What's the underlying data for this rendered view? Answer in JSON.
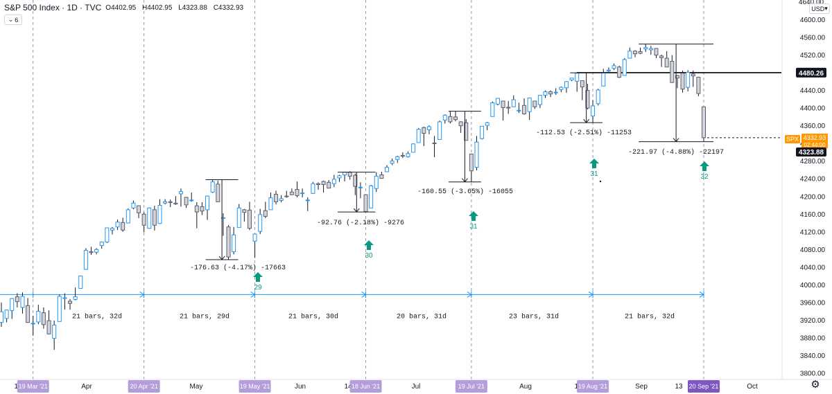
{
  "header": {
    "symbol": "S&P 500 Index · 1D · TVC",
    "open_label": "O",
    "open": "4402.95",
    "high_label": "H",
    "high": "4402.95",
    "low_label": "L",
    "low": "4323.88",
    "close_label": "C",
    "close": "4332.93",
    "indicator_count": "6"
  },
  "price_axis": {
    "currency": "USD",
    "ticks": [
      "4600.00",
      "4560.00",
      "4520.00",
      "4480.00",
      "4440.00",
      "4400.00",
      "4360.00",
      "4320.00",
      "4280.00",
      "4240.00",
      "4200.00",
      "4160.00",
      "4120.00",
      "4080.00",
      "4040.00",
      "4000.00",
      "3960.00",
      "3920.00",
      "3880.00",
      "3840.00",
      "3800.00"
    ],
    "top_cut_label": "4640.00",
    "hline_label": "4480.26",
    "spx_symbol": "SPX",
    "spx_price": "4332.93",
    "spx_countdown": "02:44:00",
    "low_label": "4323.88"
  },
  "time_axis": {
    "labels": [
      "15",
      "Apr",
      "20",
      "May",
      "Jun",
      "14",
      "Jul",
      "Aug",
      "16",
      "Sep",
      "13",
      "Oct"
    ],
    "highlights": [
      "19 Mar '21",
      "20 Apr '21",
      "19 May '21",
      "18 Jun '21",
      "19 Jul '21",
      "19 Aug '21",
      "20 Sep '21"
    ]
  },
  "chart_data": {
    "type": "candlestick",
    "title": "S&P 500 Index · 1D · TVC",
    "ylim": [
      3780,
      4640
    ],
    "x_range": [
      "2021-03-11",
      "2021-10-08"
    ],
    "horizontal_level": 4480.26,
    "candles": [
      {
        "d": "2021-03-11",
        "o": 3915,
        "h": 3960,
        "l": 3905,
        "c": 3939
      },
      {
        "d": "2021-03-12",
        "o": 3924,
        "h": 3944,
        "l": 3915,
        "c": 3943
      },
      {
        "d": "2021-03-15",
        "o": 3942,
        "h": 3970,
        "l": 3923,
        "c": 3969
      },
      {
        "d": "2021-03-16",
        "o": 3973,
        "h": 3981,
        "l": 3949,
        "c": 3962
      },
      {
        "d": "2021-03-17",
        "o": 3949,
        "h": 3983,
        "l": 3935,
        "c": 3974
      },
      {
        "d": "2021-03-18",
        "o": 3953,
        "h": 3970,
        "l": 3914,
        "c": 3915
      },
      {
        "d": "2021-03-19",
        "o": 3913,
        "h": 3930,
        "l": 3885,
        "c": 3913
      },
      {
        "d": "2021-03-22",
        "o": 3916,
        "h": 3955,
        "l": 3911,
        "c": 3940
      },
      {
        "d": "2021-03-23",
        "o": 3937,
        "h": 3949,
        "l": 3901,
        "c": 3910
      },
      {
        "d": "2021-03-24",
        "o": 3919,
        "h": 3942,
        "l": 3888,
        "c": 3889
      },
      {
        "d": "2021-03-25",
        "o": 3879,
        "h": 3919,
        "l": 3853,
        "c": 3909
      },
      {
        "d": "2021-03-26",
        "o": 3917,
        "h": 3978,
        "l": 3917,
        "c": 3974
      },
      {
        "d": "2021-03-29",
        "o": 3969,
        "h": 3981,
        "l": 3944,
        "c": 3971
      },
      {
        "d": "2021-03-30",
        "o": 3963,
        "h": 3968,
        "l": 3944,
        "c": 3958
      },
      {
        "d": "2021-03-31",
        "o": 3967,
        "h": 3994,
        "l": 3965,
        "c": 3973
      },
      {
        "d": "2021-04-01",
        "o": 3992,
        "h": 4021,
        "l": 3992,
        "c": 4020
      },
      {
        "d": "2021-04-05",
        "o": 4035,
        "h": 4083,
        "l": 4035,
        "c": 4078
      },
      {
        "d": "2021-04-06",
        "o": 4075,
        "h": 4086,
        "l": 4068,
        "c": 4073
      },
      {
        "d": "2021-04-07",
        "o": 4074,
        "h": 4083,
        "l": 4069,
        "c": 4080
      },
      {
        "d": "2021-04-08",
        "o": 4089,
        "h": 4098,
        "l": 4082,
        "c": 4097
      },
      {
        "d": "2021-04-09",
        "o": 4097,
        "h": 4129,
        "l": 4095,
        "c": 4129
      },
      {
        "d": "2021-04-12",
        "o": 4124,
        "h": 4131,
        "l": 4114,
        "c": 4128
      },
      {
        "d": "2021-04-13",
        "o": 4131,
        "h": 4148,
        "l": 4124,
        "c": 4142
      },
      {
        "d": "2021-04-14",
        "o": 4141,
        "h": 4152,
        "l": 4120,
        "c": 4124
      },
      {
        "d": "2021-04-15",
        "o": 4140,
        "h": 4173,
        "l": 4140,
        "c": 4170
      },
      {
        "d": "2021-04-16",
        "o": 4174,
        "h": 4191,
        "l": 4171,
        "c": 4185
      },
      {
        "d": "2021-04-19",
        "o": 4179,
        "h": 4180,
        "l": 4151,
        "c": 4163
      },
      {
        "d": "2021-04-20",
        "o": 4160,
        "h": 4164,
        "l": 4119,
        "c": 4135
      },
      {
        "d": "2021-04-21",
        "o": 4128,
        "h": 4175,
        "l": 4127,
        "c": 4174
      },
      {
        "d": "2021-04-22",
        "o": 4170,
        "h": 4179,
        "l": 4123,
        "c": 4135
      },
      {
        "d": "2021-04-23",
        "o": 4139,
        "h": 4194,
        "l": 4138,
        "c": 4180
      },
      {
        "d": "2021-04-26",
        "o": 4185,
        "h": 4194,
        "l": 4182,
        "c": 4188
      },
      {
        "d": "2021-04-27",
        "o": 4188,
        "h": 4193,
        "l": 4176,
        "c": 4187
      },
      {
        "d": "2021-04-28",
        "o": 4185,
        "h": 4201,
        "l": 4181,
        "c": 4183
      },
      {
        "d": "2021-04-29",
        "o": 4206,
        "h": 4218,
        "l": 4177,
        "c": 4211
      },
      {
        "d": "2021-04-30",
        "o": 4198,
        "h": 4199,
        "l": 4174,
        "c": 4181
      },
      {
        "d": "2021-05-03",
        "o": 4192,
        "h": 4209,
        "l": 4188,
        "c": 4192
      },
      {
        "d": "2021-05-04",
        "o": 4179,
        "h": 4187,
        "l": 4128,
        "c": 4165
      },
      {
        "d": "2021-05-05",
        "o": 4177,
        "h": 4187,
        "l": 4158,
        "c": 4167
      },
      {
        "d": "2021-05-06",
        "o": 4170,
        "h": 4202,
        "l": 4147,
        "c": 4201
      },
      {
        "d": "2021-05-07",
        "o": 4210,
        "h": 4238,
        "l": 4208,
        "c": 4233
      },
      {
        "d": "2021-05-10",
        "o": 4228,
        "h": 4236,
        "l": 4188,
        "c": 4188
      },
      {
        "d": "2021-05-11",
        "o": 4151,
        "h": 4162,
        "l": 4111,
        "c": 4152
      },
      {
        "d": "2021-05-12",
        "o": 4131,
        "h": 4135,
        "l": 4057,
        "c": 4063
      },
      {
        "d": "2021-05-13",
        "o": 4075,
        "h": 4131,
        "l": 4069,
        "c": 4113
      },
      {
        "d": "2021-05-14",
        "o": 4130,
        "h": 4183,
        "l": 4130,
        "c": 4174
      },
      {
        "d": "2021-05-17",
        "o": 4170,
        "h": 4172,
        "l": 4143,
        "c": 4164
      },
      {
        "d": "2021-05-18",
        "o": 4169,
        "h": 4188,
        "l": 4124,
        "c": 4128
      },
      {
        "d": "2021-05-19",
        "o": 4099,
        "h": 4116,
        "l": 4061,
        "c": 4115
      },
      {
        "d": "2021-05-20",
        "o": 4121,
        "h": 4172,
        "l": 4115,
        "c": 4159
      },
      {
        "d": "2021-05-21",
        "o": 4168,
        "h": 4188,
        "l": 4151,
        "c": 4155
      },
      {
        "d": "2021-05-24",
        "o": 4170,
        "h": 4209,
        "l": 4170,
        "c": 4197
      },
      {
        "d": "2021-05-25",
        "o": 4205,
        "h": 4213,
        "l": 4182,
        "c": 4188
      },
      {
        "d": "2021-05-26",
        "o": 4191,
        "h": 4203,
        "l": 4187,
        "c": 4195
      },
      {
        "d": "2021-05-27",
        "o": 4201,
        "h": 4213,
        "l": 4197,
        "c": 4200
      },
      {
        "d": "2021-05-28",
        "o": 4210,
        "h": 4218,
        "l": 4203,
        "c": 4204
      },
      {
        "d": "2021-06-01",
        "o": 4216,
        "h": 4234,
        "l": 4198,
        "c": 4202
      },
      {
        "d": "2021-06-02",
        "o": 4207,
        "h": 4218,
        "l": 4198,
        "c": 4208
      },
      {
        "d": "2021-06-03",
        "o": 4191,
        "h": 4198,
        "l": 4167,
        "c": 4192
      },
      {
        "d": "2021-06-04",
        "o": 4207,
        "h": 4233,
        "l": 4206,
        "c": 4229
      },
      {
        "d": "2021-06-07",
        "o": 4229,
        "h": 4232,
        "l": 4215,
        "c": 4227
      },
      {
        "d": "2021-06-08",
        "o": 4234,
        "h": 4236,
        "l": 4209,
        "c": 4227
      },
      {
        "d": "2021-06-09",
        "o": 4232,
        "h": 4237,
        "l": 4218,
        "c": 4219
      },
      {
        "d": "2021-06-10",
        "o": 4229,
        "h": 4249,
        "l": 4221,
        "c": 4239
      },
      {
        "d": "2021-06-11",
        "o": 4242,
        "h": 4249,
        "l": 4233,
        "c": 4247
      },
      {
        "d": "2021-06-14",
        "o": 4249,
        "h": 4255,
        "l": 4234,
        "c": 4255
      },
      {
        "d": "2021-06-15",
        "o": 4255,
        "h": 4257,
        "l": 4238,
        "c": 4246
      },
      {
        "d": "2021-06-16",
        "o": 4248,
        "h": 4252,
        "l": 4203,
        "c": 4223
      },
      {
        "d": "2021-06-17",
        "o": 4220,
        "h": 4232,
        "l": 4196,
        "c": 4221
      },
      {
        "d": "2021-06-18",
        "o": 4204,
        "h": 4204,
        "l": 4165,
        "c": 4166
      },
      {
        "d": "2021-06-21",
        "o": 4174,
        "h": 4226,
        "l": 4174,
        "c": 4224
      },
      {
        "d": "2021-06-22",
        "o": 4218,
        "h": 4255,
        "l": 4210,
        "c": 4246
      },
      {
        "d": "2021-06-23",
        "o": 4249,
        "h": 4256,
        "l": 4240,
        "c": 4241
      },
      {
        "d": "2021-06-24",
        "o": 4256,
        "h": 4271,
        "l": 4256,
        "c": 4266
      },
      {
        "d": "2021-06-25",
        "o": 4275,
        "h": 4286,
        "l": 4271,
        "c": 4280
      },
      {
        "d": "2021-06-28",
        "o": 4284,
        "h": 4292,
        "l": 4276,
        "c": 4290
      },
      {
        "d": "2021-06-29",
        "o": 4293,
        "h": 4300,
        "l": 4287,
        "c": 4291
      },
      {
        "d": "2021-06-30",
        "o": 4290,
        "h": 4302,
        "l": 4288,
        "c": 4297
      },
      {
        "d": "2021-07-01",
        "o": 4300,
        "h": 4320,
        "l": 4300,
        "c": 4319
      },
      {
        "d": "2021-07-02",
        "o": 4322,
        "h": 4355,
        "l": 4322,
        "c": 4352
      },
      {
        "d": "2021-07-06",
        "o": 4356,
        "h": 4358,
        "l": 4314,
        "c": 4343
      },
      {
        "d": "2021-07-07",
        "o": 4351,
        "h": 4361,
        "l": 4341,
        "c": 4358
      },
      {
        "d": "2021-07-08",
        "o": 4321,
        "h": 4337,
        "l": 4289,
        "c": 4320
      },
      {
        "d": "2021-07-09",
        "o": 4329,
        "h": 4372,
        "l": 4329,
        "c": 4369
      },
      {
        "d": "2021-07-12",
        "o": 4373,
        "h": 4386,
        "l": 4365,
        "c": 4384
      },
      {
        "d": "2021-07-13",
        "o": 4381,
        "h": 4393,
        "l": 4365,
        "c": 4369
      },
      {
        "d": "2021-07-14",
        "o": 4380,
        "h": 4393,
        "l": 4370,
        "c": 4374
      },
      {
        "d": "2021-07-15",
        "o": 4369,
        "h": 4370,
        "l": 4344,
        "c": 4360
      },
      {
        "d": "2021-07-16",
        "o": 4367,
        "h": 4375,
        "l": 4327,
        "c": 4327
      },
      {
        "d": "2021-07-19",
        "o": 4296,
        "h": 4296,
        "l": 4233,
        "c": 4258
      },
      {
        "d": "2021-07-20",
        "o": 4266,
        "h": 4337,
        "l": 4259,
        "c": 4323
      },
      {
        "d": "2021-07-21",
        "o": 4331,
        "h": 4359,
        "l": 4329,
        "c": 4359
      },
      {
        "d": "2021-07-22",
        "o": 4361,
        "h": 4369,
        "l": 4350,
        "c": 4367
      },
      {
        "d": "2021-07-23",
        "o": 4381,
        "h": 4415,
        "l": 4381,
        "c": 4412
      },
      {
        "d": "2021-07-26",
        "o": 4409,
        "h": 4422,
        "l": 4406,
        "c": 4422
      },
      {
        "d": "2021-07-27",
        "o": 4416,
        "h": 4416,
        "l": 4372,
        "c": 4401
      },
      {
        "d": "2021-07-28",
        "o": 4402,
        "h": 4416,
        "l": 4387,
        "c": 4400
      },
      {
        "d": "2021-07-29",
        "o": 4403,
        "h": 4429,
        "l": 4403,
        "c": 4419
      },
      {
        "d": "2021-07-30",
        "o": 4395,
        "h": 4412,
        "l": 4389,
        "c": 4395
      },
      {
        "d": "2021-08-02",
        "o": 4406,
        "h": 4422,
        "l": 4385,
        "c": 4387
      },
      {
        "d": "2021-08-03",
        "o": 4392,
        "h": 4423,
        "l": 4373,
        "c": 4423
      },
      {
        "d": "2021-08-04",
        "o": 4416,
        "h": 4416,
        "l": 4398,
        "c": 4403
      },
      {
        "d": "2021-08-05",
        "o": 4408,
        "h": 4430,
        "l": 4400,
        "c": 4429
      },
      {
        "d": "2021-08-06",
        "o": 4429,
        "h": 4440,
        "l": 4423,
        "c": 4437
      },
      {
        "d": "2021-08-09",
        "o": 4437,
        "h": 4440,
        "l": 4425,
        "c": 4432
      },
      {
        "d": "2021-08-10",
        "o": 4435,
        "h": 4445,
        "l": 4430,
        "c": 4436
      },
      {
        "d": "2021-08-11",
        "o": 4442,
        "h": 4449,
        "l": 4436,
        "c": 4447
      },
      {
        "d": "2021-08-12",
        "o": 4446,
        "h": 4461,
        "l": 4435,
        "c": 4460
      },
      {
        "d": "2021-08-13",
        "o": 4464,
        "h": 4468,
        "l": 4461,
        "c": 4468
      },
      {
        "d": "2021-08-16",
        "o": 4461,
        "h": 4480,
        "l": 4437,
        "c": 4479
      },
      {
        "d": "2021-08-17",
        "o": 4462,
        "h": 4462,
        "l": 4418,
        "c": 4448
      },
      {
        "d": "2021-08-18",
        "o": 4440,
        "h": 4455,
        "l": 4397,
        "c": 4400
      },
      {
        "d": "2021-08-19",
        "o": 4382,
        "h": 4418,
        "l": 4367,
        "c": 4405
      },
      {
        "d": "2021-08-20",
        "o": 4410,
        "h": 4444,
        "l": 4406,
        "c": 4441
      },
      {
        "d": "2021-08-23",
        "o": 4450,
        "h": 4489,
        "l": 4450,
        "c": 4479
      },
      {
        "d": "2021-08-24",
        "o": 4484,
        "h": 4492,
        "l": 4482,
        "c": 4486
      },
      {
        "d": "2021-08-25",
        "o": 4490,
        "h": 4501,
        "l": 4486,
        "c": 4496
      },
      {
        "d": "2021-08-26",
        "o": 4493,
        "h": 4496,
        "l": 4468,
        "c": 4470
      },
      {
        "d": "2021-08-27",
        "o": 4474,
        "h": 4513,
        "l": 4474,
        "c": 4510
      },
      {
        "d": "2021-08-30",
        "o": 4513,
        "h": 4537,
        "l": 4513,
        "c": 4529
      },
      {
        "d": "2021-08-31",
        "o": 4529,
        "h": 4531,
        "l": 4515,
        "c": 4523
      },
      {
        "d": "2021-09-01",
        "o": 4528,
        "h": 4537,
        "l": 4522,
        "c": 4524
      },
      {
        "d": "2021-09-02",
        "o": 4534,
        "h": 4545,
        "l": 4527,
        "c": 4537
      },
      {
        "d": "2021-09-03",
        "o": 4532,
        "h": 4541,
        "l": 4521,
        "c": 4535
      },
      {
        "d": "2021-09-07",
        "o": 4535,
        "h": 4536,
        "l": 4513,
        "c": 4520
      },
      {
        "d": "2021-09-08",
        "o": 4518,
        "h": 4521,
        "l": 4493,
        "c": 4514
      },
      {
        "d": "2021-09-09",
        "o": 4513,
        "h": 4529,
        "l": 4493,
        "c": 4493
      },
      {
        "d": "2021-09-10",
        "o": 4506,
        "h": 4520,
        "l": 4457,
        "c": 4458
      },
      {
        "d": "2021-09-13",
        "o": 4474,
        "h": 4475,
        "l": 4445,
        "c": 4468
      },
      {
        "d": "2021-09-14",
        "o": 4479,
        "h": 4485,
        "l": 4435,
        "c": 4443
      },
      {
        "d": "2021-09-15",
        "o": 4447,
        "h": 4486,
        "l": 4438,
        "c": 4481
      },
      {
        "d": "2021-09-16",
        "o": 4477,
        "h": 4485,
        "l": 4448,
        "c": 4473
      },
      {
        "d": "2021-09-17",
        "o": 4470,
        "h": 4471,
        "l": 4427,
        "c": 4433
      },
      {
        "d": "2021-09-20",
        "o": 4403,
        "h": 4403,
        "l": 4324,
        "c": 4333
      }
    ]
  },
  "annotations": {
    "measures": [
      {
        "label": "-176.63 (-4.17%) -17663",
        "count": "29"
      },
      {
        "label": "-92.76 (-2.18%) -9276",
        "count": "30"
      },
      {
        "label": "-160.55 (-3.65%) -16055",
        "count": "31"
      },
      {
        "label": "-112.53 (-2.51%) -11253",
        "count": "31"
      },
      {
        "label": "-221.97 (-4.88%) -22197",
        "count": "32"
      }
    ],
    "range_labels": [
      "21 bars, 32d",
      "21 bars, 29d",
      "21 bars, 30d",
      "20 bars, 31d",
      "23 bars, 31d",
      "21 bars, 32d"
    ],
    "range_level": 3978
  },
  "colors": {
    "up_border": "#2196f3",
    "down_fill": "#d1d4dc",
    "wick": "#131722",
    "range_line": "#2196f3",
    "arrow": "#089981",
    "highlight": "#b39ddb",
    "highlight_dark": "#7e57c2",
    "spx_tag": "#ff9800"
  }
}
